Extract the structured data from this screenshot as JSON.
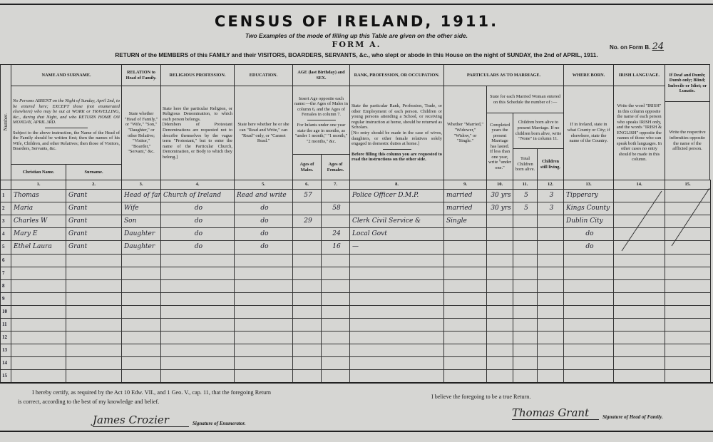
{
  "header": {
    "title": "CENSUS OF IRELAND, 1911.",
    "subtitle": "Two Examples of the mode of filling up this Table are given on the other side.",
    "form": "FORM A.",
    "form_no_label": "No. on Form B.",
    "form_no_value": "24",
    "return_line": "RETURN of the MEMBERS of this FAMILY and their VISITORS, BOARDERS, SERVANTS, &c., who slept or abode in this House on the night of SUNDAY, the 2nd of APRIL, 1911."
  },
  "columns": {
    "number": "Number.",
    "name_head": "NAME AND SURNAME.",
    "name_instr_1": "No Persons ABSENT on the Night of Sunday, April 2nd, to be entered here; EXCEPT those (not enumerated elsewhere) who may be out at WORK or TRAVELLING, &c., during that Night, and who RETURN HOME ON MONDAY, APRIL 3RD.",
    "name_instr_2": "Subject to the above instruction, the Name of the Head of the Family should be written first; then the names of his Wife, Children, and other Relatives; then those of Visitors, Boarders, Servants, &c.",
    "christian": "Christian Name.",
    "surname": "Surname.",
    "relation_head": "RELATION to Head of Family.",
    "relation_instr": "State whether \"Head of Family,\" or \"Wife,\" \"Son,\" \"Daughter,\" or other Relative; \"Visitor,\" \"Boarder,\" \"Servant,\" &c.",
    "religion_head": "RELIGIOUS PROFESSION.",
    "religion_instr_1": "State here the particular Religion, or Religious Denomination, to which each person belongs.",
    "religion_instr_2": "[Members of Protestant Denominations are requested not to describe themselves by the vague term \"Protestant,\" but to enter the name of the Particular Church, Denomination, or Body to which they belong.]",
    "education_head": "EDUCATION.",
    "education_instr": "State here whether he or she can \"Read and Write,\" can \"Read\" only, or \"Cannot Read.\"",
    "age_head": "AGE (last Birthday) and SEX.",
    "age_instr_1": "Insert Age opposite each name:—the Ages of Males in column 6, and the Ages of Females in column 7.",
    "age_instr_2": "For Infants under one year state the age in months, as \"under 1 month,\" \"1 month,\" \"2 months,\" &c.",
    "males": "Ages of Males.",
    "females": "Ages of Females.",
    "rank_head": "RANK, PROFESSION, OR OCCUPATION.",
    "rank_instr_1": "State the particular Rank, Profession, Trade, or other Employment of each person. Children or young persons attending a School, or receiving regular instruction at home, should be returned as Scholars.",
    "rank_instr_2": "[No entry should be made in the case of wives, daughters, or other female relatives solely engaged in domestic duties at home.]",
    "rank_instr_3": "Before filling this column you are requested to read the instructions on the other side.",
    "marriage_head": "PARTICULARS AS TO MARRIAGE.",
    "whether": "Whether \"Married,\" \"Widower,\" \"Widow,\" or \"Single.\"",
    "state_woman": "State for each Married Woman entered on this Schedule the number of :—",
    "completed": "Completed years the present Marriage has lasted. If less than one year, write \"under one.\"",
    "children_born": "Children born alive to present Marriage. If no children born alive, write \"None\" in column 11.",
    "total": "Total Children born alive.",
    "still": "Children still living.",
    "born_head": "WHERE BORN.",
    "born_instr": "If in Ireland, state in what County or City; if elsewhere, state the name of the Country.",
    "irish_head": "IRISH LANGUAGE.",
    "irish_instr": "Write the word \"IRISH\" in this column opposite the name of each person who speaks IRISH only, and the words \"IRISH & ENGLISH\" opposite the names of those who can speak both languages. In other cases no entry should be made in this column.",
    "deaf_head": "If Deaf and Dumb; Dumb only; Blind; Imbecile or Idiot; or Lunatic.",
    "deaf_instr": "Write the respective infirmities opposite the name of the afflicted person.",
    "numbers": [
      "1.",
      "2.",
      "3.",
      "4.",
      "5.",
      "6.",
      "7.",
      "8.",
      "9.",
      "10.",
      "11.",
      "12.",
      "13.",
      "14.",
      "15."
    ]
  },
  "rows": [
    {
      "n": "1",
      "cells": [
        "Thomas",
        "Grant",
        "Head of family",
        "Church of Ireland",
        "Read and write",
        "57",
        "",
        "Police Officer D.M.P.",
        "married",
        "30 yrs",
        "5",
        "3",
        "Tipperary",
        "",
        ""
      ]
    },
    {
      "n": "2",
      "cells": [
        "Maria",
        "Grant",
        "Wife",
        "do",
        "do",
        "",
        "58",
        "",
        "married",
        "30 yrs",
        "5",
        "3",
        "Kings County",
        "",
        ""
      ]
    },
    {
      "n": "3",
      "cells": [
        "Charles W",
        "Grant",
        "Son",
        "do",
        "do",
        "29",
        "",
        "Clerk Civil Service &",
        "Single",
        "",
        "",
        "",
        "Dublin City",
        "",
        ""
      ]
    },
    {
      "n": "4",
      "cells": [
        "Mary E",
        "Grant",
        "Daughter",
        "do",
        "do",
        "",
        "24",
        "Local Govt",
        "",
        "",
        "",
        "",
        "do",
        "",
        ""
      ]
    },
    {
      "n": "5",
      "cells": [
        "Ethel Laura",
        "Grant",
        "Daughter",
        "do",
        "do",
        "",
        "16",
        "—",
        "",
        "",
        "",
        "",
        "do",
        "",
        ""
      ]
    },
    {
      "n": "6",
      "cells": [
        "",
        "",
        "",
        "",
        "",
        "",
        "",
        "",
        "",
        "",
        "",
        "",
        "",
        "",
        ""
      ]
    },
    {
      "n": "7",
      "cells": [
        "",
        "",
        "",
        "",
        "",
        "",
        "",
        "",
        "",
        "",
        "",
        "",
        "",
        "",
        ""
      ]
    },
    {
      "n": "8",
      "cells": [
        "",
        "",
        "",
        "",
        "",
        "",
        "",
        "",
        "",
        "",
        "",
        "",
        "",
        "",
        ""
      ]
    },
    {
      "n": "9",
      "cells": [
        "",
        "",
        "",
        "",
        "",
        "",
        "",
        "",
        "",
        "",
        "",
        "",
        "",
        "",
        ""
      ]
    },
    {
      "n": "10",
      "cells": [
        "",
        "",
        "",
        "",
        "",
        "",
        "",
        "",
        "",
        "",
        "",
        "",
        "",
        "",
        ""
      ]
    },
    {
      "n": "11",
      "cells": [
        "",
        "",
        "",
        "",
        "",
        "",
        "",
        "",
        "",
        "",
        "",
        "",
        "",
        "",
        ""
      ]
    },
    {
      "n": "12",
      "cells": [
        "",
        "",
        "",
        "",
        "",
        "",
        "",
        "",
        "",
        "",
        "",
        "",
        "",
        "",
        ""
      ]
    },
    {
      "n": "13",
      "cells": [
        "",
        "",
        "",
        "",
        "",
        "",
        "",
        "",
        "",
        "",
        "",
        "",
        "",
        "",
        ""
      ]
    },
    {
      "n": "14",
      "cells": [
        "",
        "",
        "",
        "",
        "",
        "",
        "",
        "",
        "",
        "",
        "",
        "",
        "",
        "",
        ""
      ]
    },
    {
      "n": "15",
      "cells": [
        "",
        "",
        "",
        "",
        "",
        "",
        "",
        "",
        "",
        "",
        "",
        "",
        "",
        "",
        ""
      ]
    }
  ],
  "footer": {
    "certify": "I hereby certify, as required by the Act 10 Edw. VII., and 1 Geo. V., cap. 11, that the foregoing Return is correct, according to the best of my knowledge and belief.",
    "enumerator_signature": "James Crozier",
    "enumerator_label": "Signature of Enumerator.",
    "believe": "I believe the foregoing to be a true Return.",
    "head_signature": "Thomas Grant",
    "head_label": "Signature of Head of Family."
  }
}
